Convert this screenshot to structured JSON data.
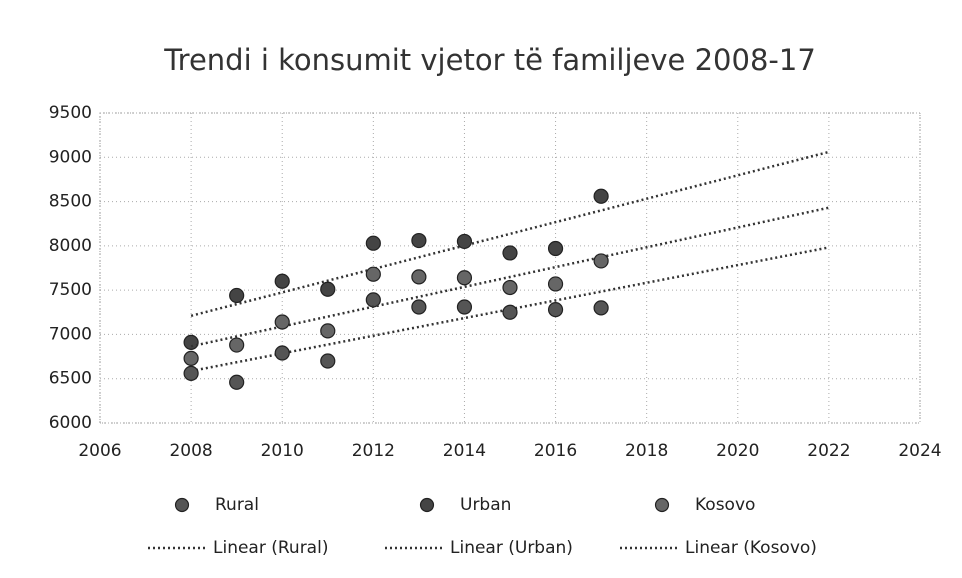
{
  "chart_data": {
    "type": "scatter",
    "title": "Trendi i konsumit vjetor të familjeve 2008-17",
    "x": [
      2008,
      2009,
      2010,
      2011,
      2012,
      2013,
      2014,
      2015,
      2016,
      2017
    ],
    "series": [
      {
        "name": "Rural",
        "color": "#555555",
        "trendline_name": "Linear (Rural)",
        "values": [
          6560,
          6460,
          6790,
          6700,
          7390,
          7310,
          7310,
          7250,
          7280,
          7300
        ]
      },
      {
        "name": "Urban",
        "color": "#444444",
        "trendline_name": "Linear (Urban)",
        "values": [
          6910,
          7440,
          7600,
          7510,
          8030,
          8060,
          8050,
          7920,
          7970,
          8560
        ]
      },
      {
        "name": "Kosovo",
        "color": "#666666",
        "trendline_name": "Linear (Kosovo)",
        "values": [
          6730,
          6880,
          7140,
          7040,
          7680,
          7650,
          7640,
          7530,
          7570,
          7830
        ]
      }
    ],
    "trendline": {
      "type": "linear",
      "x_end": 2022
    },
    "xlim": [
      2006,
      2024
    ],
    "xticks": [
      2006,
      2008,
      2010,
      2012,
      2014,
      2016,
      2018,
      2020,
      2022,
      2024
    ],
    "ylim": [
      6000,
      9500
    ],
    "yticks": [
      6000,
      6500,
      7000,
      7500,
      8000,
      8500,
      9000,
      9500
    ],
    "grid": true,
    "legend": "bottom"
  }
}
